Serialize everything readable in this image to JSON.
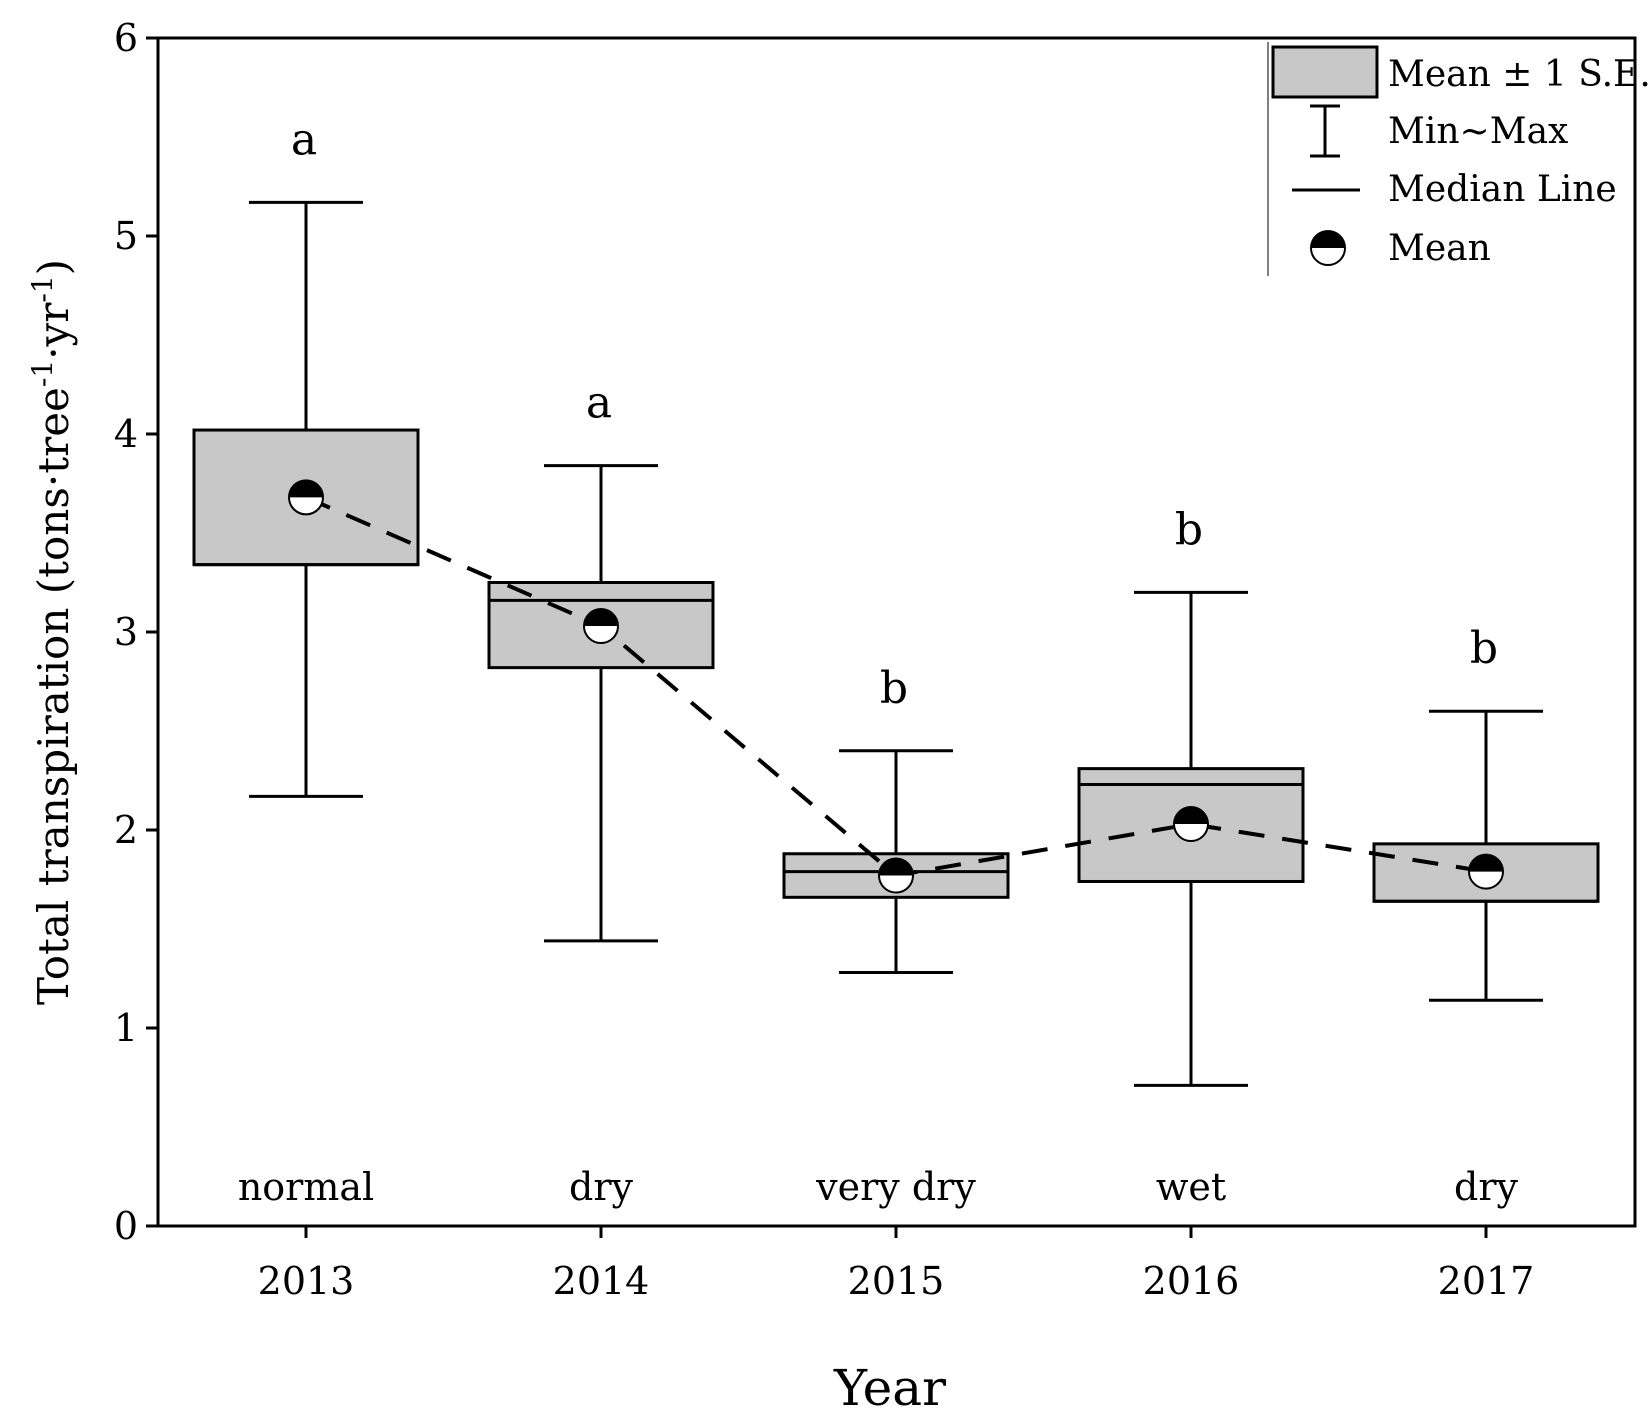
{
  "chart_data": {
    "type": "box",
    "xlabel": "Year",
    "ylabel_main": "Total transpiration (tons·tree",
    "ylabel_sup1": "-1",
    "ylabel_mid": "·yr",
    "ylabel_sup2": "-1",
    "ylabel_end": ")",
    "ylim": [
      0,
      6
    ],
    "yticks": [
      "0",
      "1",
      "2",
      "3",
      "4",
      "5",
      "6"
    ],
    "categories": [
      "2013",
      "2014",
      "2015",
      "2016",
      "2017"
    ],
    "conditions": [
      "normal",
      "dry",
      "very dry",
      "wet",
      "dry"
    ],
    "significance": [
      "a",
      "a",
      "b",
      "b",
      "b"
    ],
    "series": [
      {
        "category": "2013",
        "min": 2.17,
        "max": 5.17,
        "se_low": 3.34,
        "se_high": 4.02,
        "median": 3.34,
        "mean": 3.68
      },
      {
        "category": "2014",
        "min": 1.44,
        "max": 3.84,
        "se_low": 2.82,
        "se_high": 3.25,
        "median": 3.16,
        "mean": 3.03
      },
      {
        "category": "2015",
        "min": 1.28,
        "max": 2.4,
        "se_low": 1.66,
        "se_high": 1.88,
        "median": 1.79,
        "mean": 1.77
      },
      {
        "category": "2016",
        "min": 0.71,
        "max": 3.2,
        "se_low": 1.74,
        "se_high": 2.31,
        "median": 2.23,
        "mean": 2.03
      },
      {
        "category": "2017",
        "min": 1.14,
        "max": 2.6,
        "se_low": 1.64,
        "se_high": 1.93,
        "median": 1.64,
        "mean": 1.79
      }
    ],
    "legend": {
      "position": "top-right",
      "items": [
        "Mean ± 1 S.E.",
        "Min~Max",
        "Median Line",
        "Mean"
      ]
    },
    "colors": {
      "box_fill": "#c8c8c8",
      "line": "#000000"
    }
  }
}
